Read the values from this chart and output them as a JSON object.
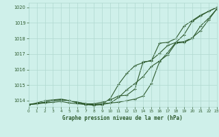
{
  "title": "Graphe pression niveau de la mer (hPa)",
  "bg_color": "#cff0ea",
  "grid_color": "#b0d8d0",
  "line_color": "#2d5a2d",
  "x_min": 0,
  "x_max": 23,
  "y_min": 1013.6,
  "y_max": 1020.3,
  "yticks": [
    1014,
    1015,
    1016,
    1017,
    1018,
    1019,
    1020
  ],
  "xtick_labels": [
    "0",
    "1",
    "2",
    "3",
    "4",
    "5",
    "6",
    "7",
    "8",
    "9",
    "10",
    "11",
    "12",
    "13",
    "14",
    "15",
    "16",
    "17",
    "18",
    "19",
    "20",
    "21",
    "22",
    "23"
  ],
  "xticks": [
    0,
    1,
    2,
    3,
    4,
    5,
    6,
    7,
    8,
    9,
    10,
    11,
    12,
    13,
    14,
    15,
    16,
    17,
    18,
    19,
    20,
    21,
    22,
    23
  ],
  "series": [
    {
      "x": [
        0,
        1,
        2,
        3,
        4,
        5,
        6,
        7,
        8,
        9,
        10,
        11,
        12,
        13,
        14,
        15,
        16,
        17,
        18,
        19,
        20,
        21,
        22,
        23
      ],
      "y": [
        1013.75,
        1013.8,
        1013.85,
        1013.9,
        1013.95,
        1013.85,
        1013.8,
        1013.75,
        1013.75,
        1013.8,
        1013.85,
        1013.9,
        1014.0,
        1014.1,
        1014.3,
        1015.1,
        1016.5,
        1017.1,
        1017.75,
        1017.8,
        1018.05,
        1018.5,
        1019.2,
        1019.9
      ]
    },
    {
      "x": [
        0,
        1,
        2,
        3,
        4,
        5,
        6,
        7,
        8,
        9,
        10,
        11,
        12,
        13,
        14,
        15,
        16,
        17,
        18,
        19,
        20,
        21,
        22,
        23
      ],
      "y": [
        1013.75,
        1013.8,
        1013.9,
        1014.0,
        1014.05,
        1014.0,
        1013.85,
        1013.75,
        1013.7,
        1013.75,
        1014.15,
        1015.05,
        1015.75,
        1016.25,
        1016.45,
        1016.6,
        1017.05,
        1017.55,
        1017.75,
        1018.25,
        1019.1,
        1019.45,
        1019.75,
        1020.0
      ]
    },
    {
      "x": [
        0,
        1,
        2,
        3,
        4,
        5,
        6,
        7,
        8,
        9,
        10,
        11,
        12,
        13,
        14,
        15,
        16,
        17,
        18,
        19,
        20,
        21,
        22,
        23
      ],
      "y": [
        1013.75,
        1013.8,
        1013.9,
        1014.0,
        1014.05,
        1014.0,
        1013.9,
        1013.8,
        1013.75,
        1013.75,
        1013.85,
        1014.2,
        1014.7,
        1015.1,
        1015.55,
        1016.2,
        1016.55,
        1016.95,
        1017.7,
        1017.75,
        1018.0,
        1018.8,
        1019.3,
        1019.9
      ]
    },
    {
      "x": [
        0,
        1,
        2,
        3,
        4,
        5,
        6,
        7,
        8,
        9,
        10,
        11,
        12,
        13,
        14,
        15,
        16,
        17,
        18,
        19,
        20,
        21,
        22,
        23
      ],
      "y": [
        1013.75,
        1013.85,
        1014.0,
        1014.05,
        1014.1,
        1014.0,
        1013.9,
        1013.8,
        1013.8,
        1013.9,
        1014.05,
        1014.3,
        1014.35,
        1014.75,
        1016.5,
        1016.55,
        1017.7,
        1017.75,
        1018.0,
        1018.8,
        1019.15,
        1019.5,
        1019.75,
        1020.0
      ]
    }
  ]
}
